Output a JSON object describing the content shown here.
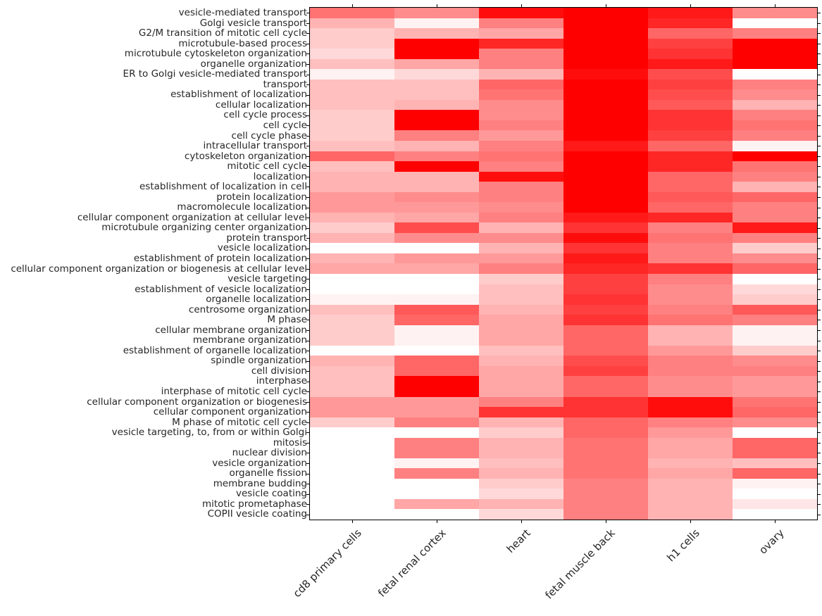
{
  "chart_data": {
    "type": "heatmap",
    "title": "",
    "xlabel": "",
    "ylabel": "",
    "legend": "none",
    "grid": "off",
    "colormap": {
      "min_color": "#ffffff",
      "max_color": "#ff0000",
      "range": [
        0,
        1
      ]
    },
    "columns": [
      "cd8 primary cells",
      "fetal renal cortex",
      "heart",
      "fetal muscle back",
      "h1 cells",
      "ovary"
    ],
    "rows": [
      "vesicle-mediated transport",
      "Golgi vesicle transport",
      "G2/M transition of mitotic cell cycle",
      "microtubule-based process",
      "microtubule cytoskeleton organization",
      "organelle organization",
      "ER to Golgi vesicle-mediated transport",
      "transport",
      "establishment of localization",
      "cellular localization",
      "cell cycle process",
      "cell cycle",
      "cell cycle phase",
      "intracellular transport",
      "cytoskeleton organization",
      "mitotic cell cycle",
      "localization",
      "establishment of localization in cell",
      "protein localization",
      "macromolecule localization",
      "cellular component organization at cellular level",
      "microtubule organizing center organization",
      "protein transport",
      "vesicle localization",
      "establishment of protein localization",
      "cellular component organization or biogenesis at cellular level",
      "vesicle targeting",
      "establishment of vesicle localization",
      "organelle localization",
      "centrosome organization",
      "M phase",
      "cellular membrane organization",
      "membrane organization",
      "establishment of organelle localization",
      "spindle organization",
      "cell division",
      "interphase",
      "interphase of mitotic cell cycle",
      "cellular component organization or biogenesis",
      "cellular component organization",
      "M phase of mitotic cell cycle",
      "vesicle targeting, to, from or within Golgi",
      "mitosis",
      "nuclear division",
      "vesicle organization",
      "organelle fission",
      "membrane budding",
      "vesicle coating",
      "mitotic prometaphase",
      "COPII vesicle coating"
    ],
    "values": [
      [
        0.55,
        0.45,
        0.95,
        1.0,
        0.9,
        0.45
      ],
      [
        0.3,
        0.05,
        0.5,
        1.0,
        0.85,
        0.0
      ],
      [
        0.2,
        0.3,
        0.35,
        1.0,
        0.6,
        0.5
      ],
      [
        0.2,
        1.0,
        0.85,
        1.0,
        0.75,
        1.0
      ],
      [
        0.15,
        1.0,
        0.5,
        1.0,
        0.8,
        1.0
      ],
      [
        0.25,
        0.35,
        0.5,
        1.0,
        0.9,
        1.0
      ],
      [
        0.05,
        0.15,
        0.3,
        0.95,
        0.7,
        0.0
      ],
      [
        0.25,
        0.25,
        0.6,
        1.0,
        0.75,
        0.5
      ],
      [
        0.25,
        0.25,
        0.55,
        1.0,
        0.7,
        0.45
      ],
      [
        0.25,
        0.3,
        0.45,
        1.0,
        0.65,
        0.3
      ],
      [
        0.2,
        1.0,
        0.45,
        1.0,
        0.8,
        0.5
      ],
      [
        0.2,
        1.0,
        0.5,
        1.0,
        0.8,
        0.55
      ],
      [
        0.2,
        0.5,
        0.4,
        1.0,
        0.75,
        0.5
      ],
      [
        0.25,
        0.3,
        0.5,
        0.9,
        0.6,
        0.05
      ],
      [
        0.6,
        0.5,
        0.55,
        1.0,
        0.85,
        1.0
      ],
      [
        0.25,
        1.0,
        0.5,
        1.0,
        0.85,
        0.55
      ],
      [
        0.3,
        0.3,
        0.95,
        1.0,
        0.6,
        0.5
      ],
      [
        0.3,
        0.3,
        0.5,
        1.0,
        0.6,
        0.3
      ],
      [
        0.4,
        0.45,
        0.5,
        1.0,
        0.65,
        0.6
      ],
      [
        0.4,
        0.4,
        0.45,
        1.0,
        0.6,
        0.5
      ],
      [
        0.3,
        0.35,
        0.5,
        0.9,
        0.85,
        0.5
      ],
      [
        0.2,
        0.7,
        0.3,
        0.8,
        0.5,
        0.9
      ],
      [
        0.3,
        0.45,
        0.45,
        0.95,
        0.55,
        0.5
      ],
      [
        0.0,
        0.0,
        0.3,
        0.8,
        0.5,
        0.2
      ],
      [
        0.3,
        0.4,
        0.4,
        0.9,
        0.5,
        0.45
      ],
      [
        0.35,
        0.35,
        0.5,
        0.85,
        0.8,
        0.6
      ],
      [
        0.0,
        0.0,
        0.2,
        0.75,
        0.5,
        0.0
      ],
      [
        0.0,
        0.0,
        0.25,
        0.75,
        0.45,
        0.15
      ],
      [
        0.05,
        0.05,
        0.25,
        0.8,
        0.45,
        0.2
      ],
      [
        0.25,
        0.65,
        0.3,
        0.75,
        0.5,
        0.65
      ],
      [
        0.2,
        0.6,
        0.35,
        0.8,
        0.55,
        0.5
      ],
      [
        0.2,
        0.05,
        0.35,
        0.6,
        0.3,
        0.05
      ],
      [
        0.2,
        0.05,
        0.35,
        0.6,
        0.3,
        0.05
      ],
      [
        0.0,
        0.0,
        0.25,
        0.6,
        0.4,
        0.2
      ],
      [
        0.3,
        0.6,
        0.3,
        0.7,
        0.5,
        0.45
      ],
      [
        0.25,
        0.6,
        0.35,
        0.75,
        0.5,
        0.5
      ],
      [
        0.25,
        1.0,
        0.35,
        0.6,
        0.45,
        0.4
      ],
      [
        0.25,
        1.0,
        0.35,
        0.6,
        0.45,
        0.4
      ],
      [
        0.4,
        0.4,
        0.5,
        0.8,
        0.95,
        0.55
      ],
      [
        0.4,
        0.4,
        0.8,
        0.8,
        0.95,
        0.6
      ],
      [
        0.2,
        0.5,
        0.3,
        0.6,
        0.5,
        0.45
      ],
      [
        0.0,
        0.0,
        0.2,
        0.6,
        0.4,
        0.0
      ],
      [
        0.0,
        0.5,
        0.3,
        0.55,
        0.35,
        0.6
      ],
      [
        0.0,
        0.5,
        0.3,
        0.55,
        0.35,
        0.6
      ],
      [
        0.0,
        0.05,
        0.25,
        0.55,
        0.3,
        0.25
      ],
      [
        0.0,
        0.5,
        0.3,
        0.55,
        0.35,
        0.6
      ],
      [
        0.0,
        0.0,
        0.2,
        0.5,
        0.3,
        0.05
      ],
      [
        0.0,
        0.0,
        0.15,
        0.5,
        0.3,
        0.0
      ],
      [
        0.0,
        0.35,
        0.3,
        0.5,
        0.3,
        0.1
      ],
      [
        0.0,
        0.0,
        0.15,
        0.5,
        0.3,
        0.0
      ]
    ]
  }
}
